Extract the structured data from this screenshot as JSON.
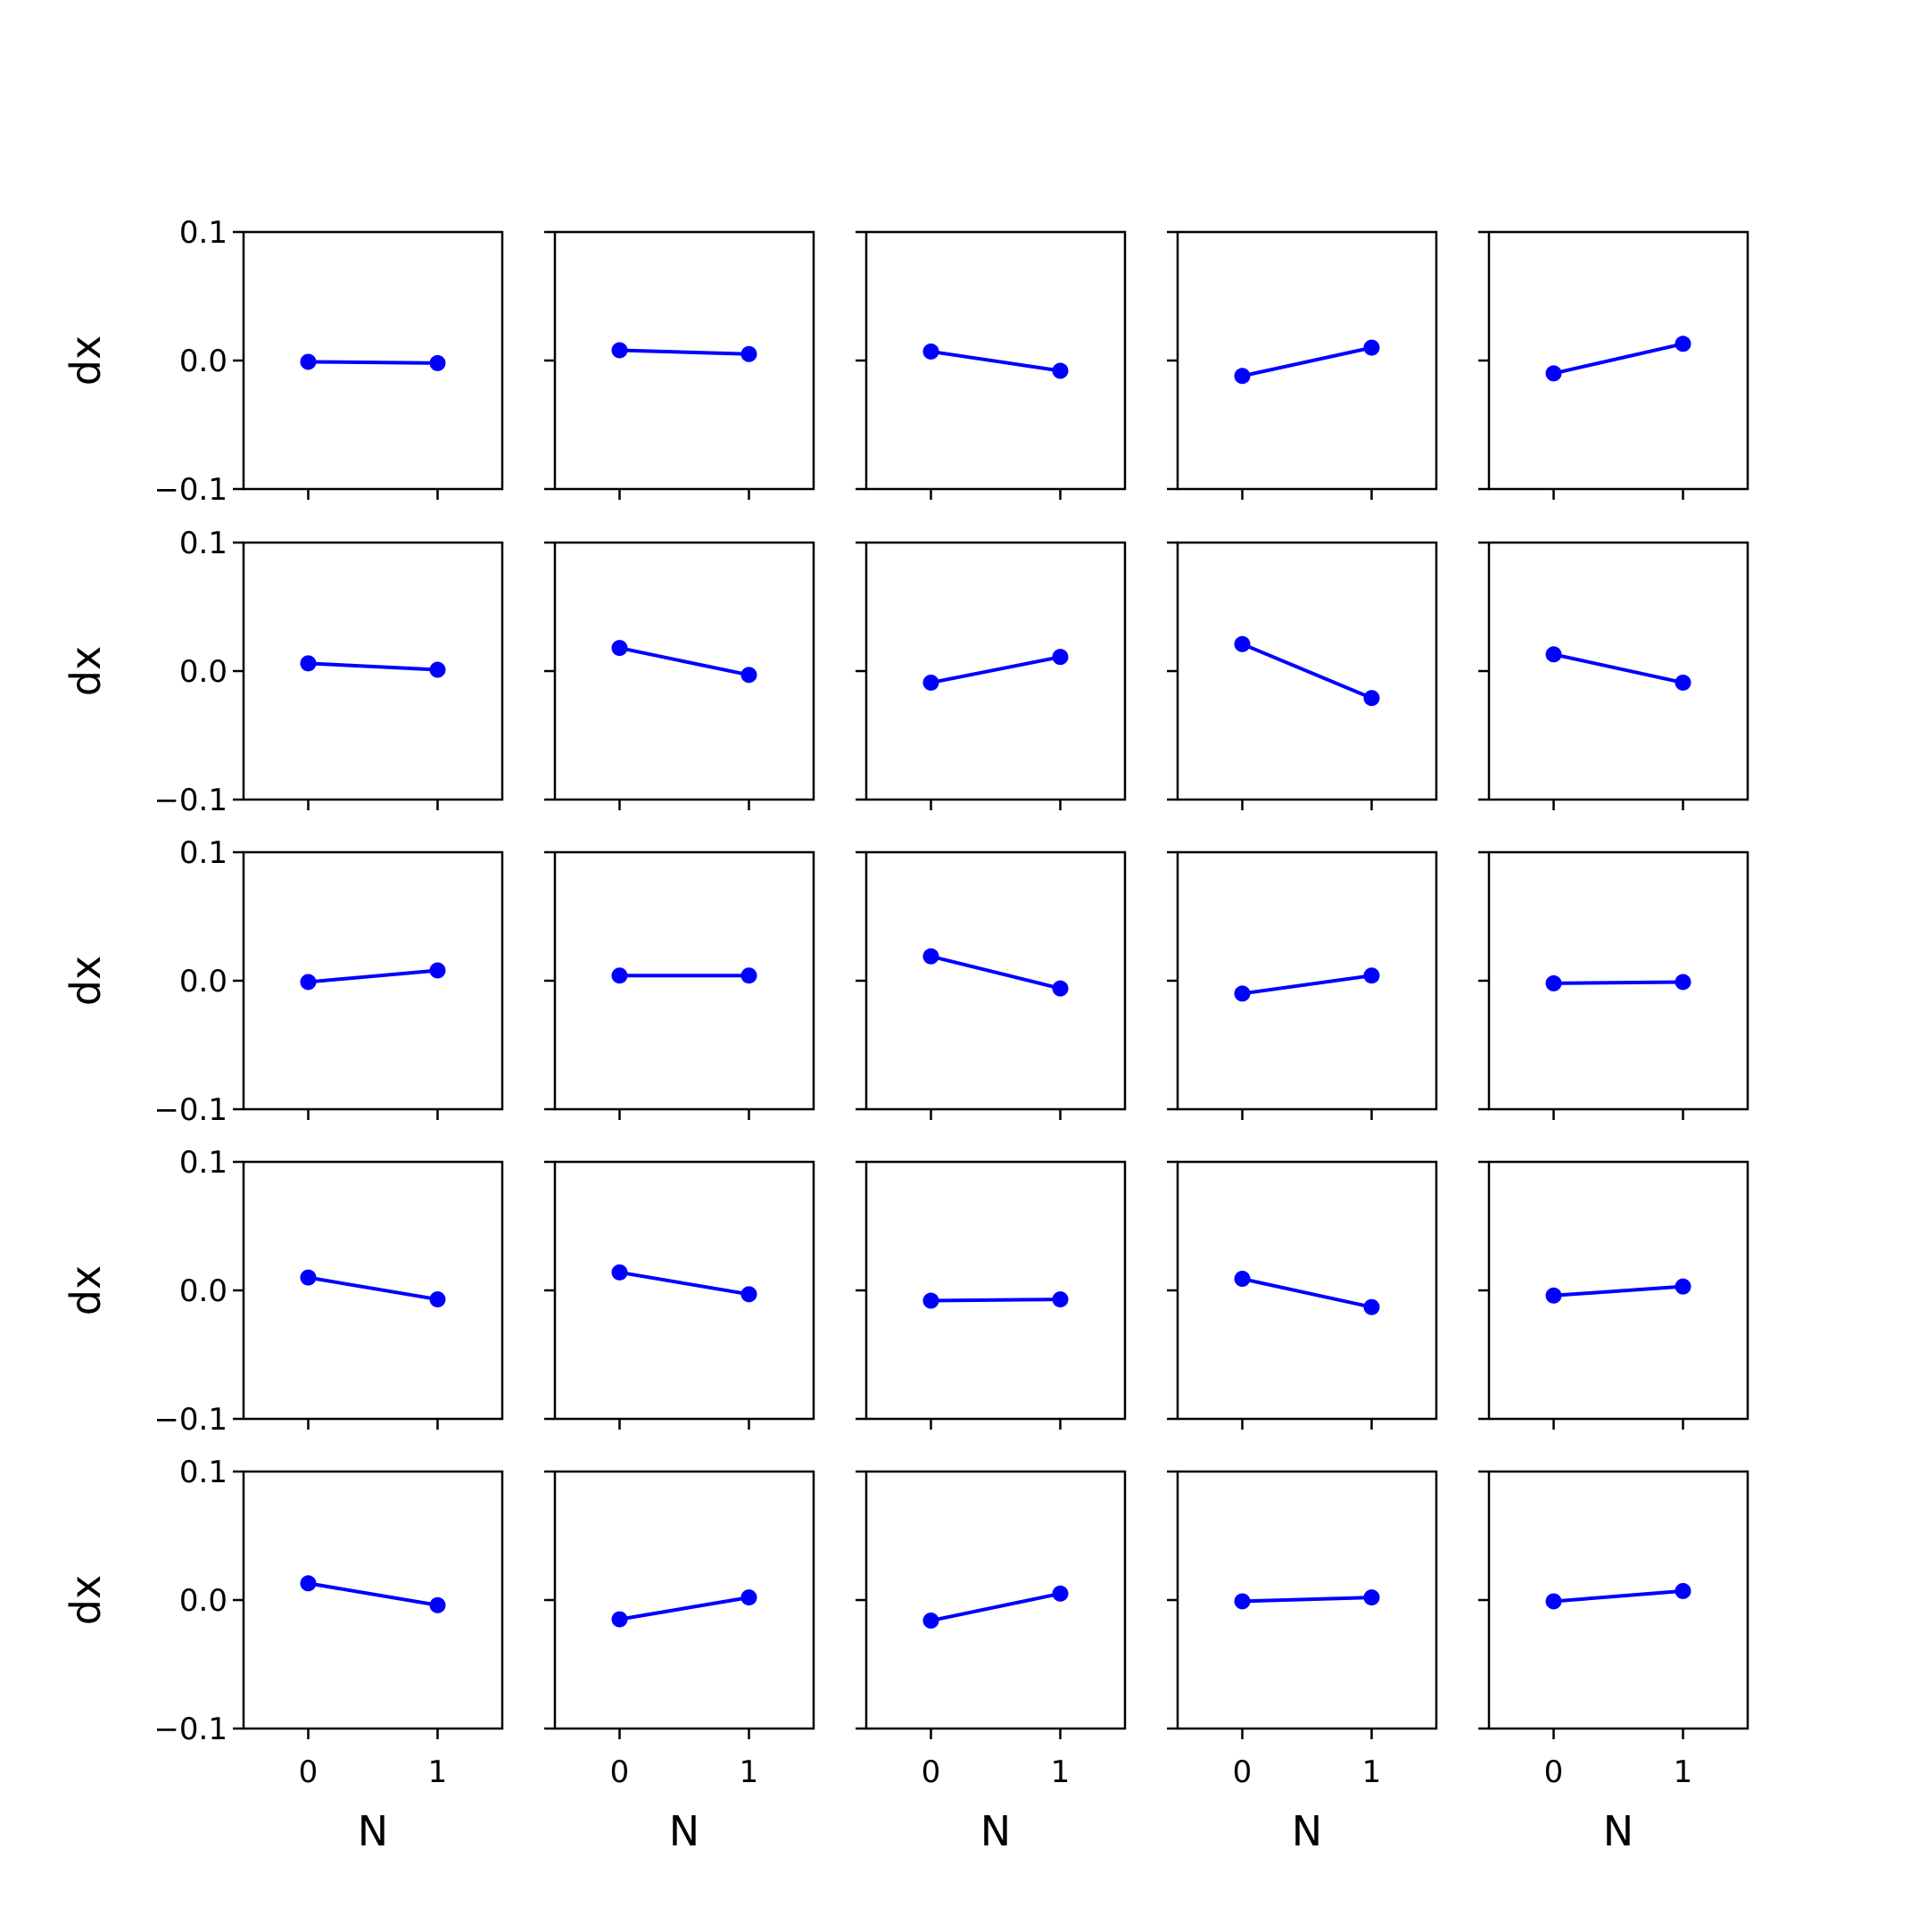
{
  "colors": {
    "line": "#0000ff",
    "axes": "#000000",
    "background": "#ffffff"
  },
  "chart_data": {
    "type": "line",
    "layout": "grid",
    "rows": 5,
    "cols": 5,
    "xlabel": "N",
    "ylabel": "dx",
    "xlim": [
      -0.5,
      1.5
    ],
    "ylim": [
      -0.1,
      0.1
    ],
    "xticks": [
      0,
      1
    ],
    "xtick_labels": [
      "0",
      "1"
    ],
    "yticks": [
      -0.1,
      0.0,
      0.1
    ],
    "ytick_labels": [
      "−0.1",
      "0.0",
      "0.1"
    ],
    "marker": "circle",
    "x": [
      0,
      1
    ],
    "panels": [
      {
        "row": 1,
        "col": 1,
        "values": [
          -0.001,
          -0.002
        ]
      },
      {
        "row": 1,
        "col": 2,
        "values": [
          0.008,
          0.005
        ]
      },
      {
        "row": 1,
        "col": 3,
        "values": [
          0.007,
          -0.008
        ]
      },
      {
        "row": 1,
        "col": 4,
        "values": [
          -0.012,
          0.01
        ]
      },
      {
        "row": 1,
        "col": 5,
        "values": [
          -0.01,
          0.013
        ]
      },
      {
        "row": 2,
        "col": 1,
        "values": [
          0.006,
          0.001
        ]
      },
      {
        "row": 2,
        "col": 2,
        "values": [
          0.018,
          -0.003
        ]
      },
      {
        "row": 2,
        "col": 3,
        "values": [
          -0.009,
          0.011
        ]
      },
      {
        "row": 2,
        "col": 4,
        "values": [
          0.021,
          -0.021
        ]
      },
      {
        "row": 2,
        "col": 5,
        "values": [
          0.013,
          -0.009
        ]
      },
      {
        "row": 3,
        "col": 1,
        "values": [
          -0.001,
          0.008
        ]
      },
      {
        "row": 3,
        "col": 2,
        "values": [
          0.004,
          0.004
        ]
      },
      {
        "row": 3,
        "col": 3,
        "values": [
          0.019,
          -0.006
        ]
      },
      {
        "row": 3,
        "col": 4,
        "values": [
          -0.01,
          0.004
        ]
      },
      {
        "row": 3,
        "col": 5,
        "values": [
          -0.002,
          -0.001
        ]
      },
      {
        "row": 4,
        "col": 1,
        "values": [
          0.01,
          -0.007
        ]
      },
      {
        "row": 4,
        "col": 2,
        "values": [
          0.014,
          -0.003
        ]
      },
      {
        "row": 4,
        "col": 3,
        "values": [
          -0.008,
          -0.007
        ]
      },
      {
        "row": 4,
        "col": 4,
        "values": [
          0.009,
          -0.013
        ]
      },
      {
        "row": 4,
        "col": 5,
        "values": [
          -0.004,
          0.003
        ]
      },
      {
        "row": 5,
        "col": 1,
        "values": [
          0.013,
          -0.004
        ]
      },
      {
        "row": 5,
        "col": 2,
        "values": [
          -0.015,
          0.002
        ]
      },
      {
        "row": 5,
        "col": 3,
        "values": [
          -0.016,
          0.005
        ]
      },
      {
        "row": 5,
        "col": 4,
        "values": [
          -0.001,
          0.002
        ]
      },
      {
        "row": 5,
        "col": 5,
        "values": [
          -0.001,
          0.007
        ]
      }
    ],
    "grid": false,
    "legend": "none"
  }
}
